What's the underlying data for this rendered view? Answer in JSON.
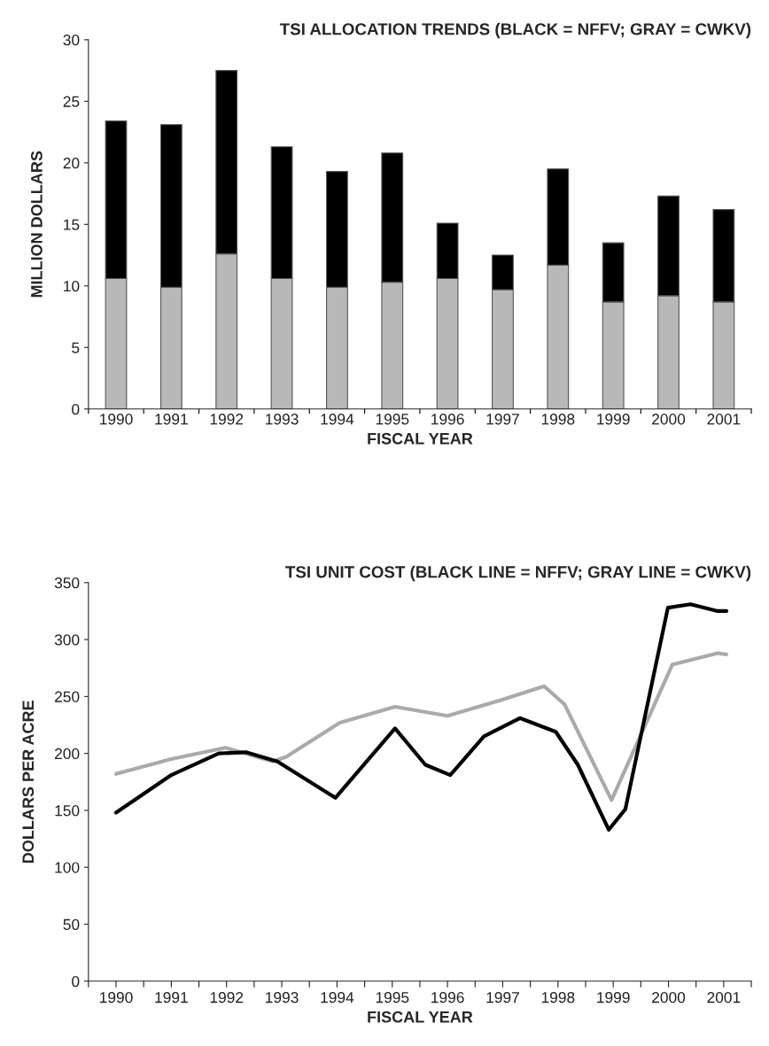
{
  "chart_data": [
    {
      "type": "bar",
      "title": "TSI ALLOCATION TRENDS (BLACK = NFFV; GRAY = CWKV)",
      "xlabel": "FISCAL YEAR",
      "ylabel": "MILLION DOLLARS",
      "stacked": true,
      "categories": [
        "1990",
        "1991",
        "1992",
        "1993",
        "1994",
        "1995",
        "1996",
        "1997",
        "1998",
        "1999",
        "2000",
        "2001"
      ],
      "series": [
        {
          "color": "#b8b8b8",
          "values": [
            10.6,
            9.9,
            12.6,
            10.6,
            9.9,
            10.3,
            10.6,
            9.7,
            11.7,
            8.7,
            9.2,
            8.7
          ]
        },
        {
          "color": "#000000",
          "values": [
            12.8,
            13.2,
            14.9,
            10.7,
            9.4,
            10.5,
            4.5,
            2.8,
            7.8,
            4.8,
            8.1,
            7.5
          ]
        }
      ],
      "ylim": [
        0,
        30
      ],
      "yticks": [
        0,
        5,
        10,
        15,
        20,
        25,
        30
      ],
      "grid": false,
      "legend": false
    },
    {
      "type": "line",
      "title": "TSI UNIT COST (BLACK LINE = NFFV; GRAY LINE = CWKV)",
      "xlabel": "FISCAL YEAR",
      "ylabel": "DOLLARS PER ACRE",
      "series": [
        {
          "color": "#aaaaaa",
          "x": [
            1990.0,
            1991.0,
            1991.98,
            1992.84,
            1993.08,
            1994.05,
            1995.05,
            1996.0,
            1996.98,
            1997.75,
            1998.12,
            1998.97,
            2000.07,
            2000.89,
            2001.05
          ],
          "values": [
            182,
            195,
            205,
            193,
            197,
            227,
            241,
            233,
            247,
            259,
            243,
            159,
            278,
            288,
            287
          ]
        },
        {
          "color": "#000000",
          "x": [
            1990.0,
            1991.0,
            1991.86,
            1992.35,
            1992.92,
            1993.97,
            1995.05,
            1995.6,
            1996.05,
            1996.66,
            1997.31,
            1997.96,
            1998.36,
            1998.92,
            1999.22,
            1999.99,
            2000.4,
            2000.89,
            2001.05
          ],
          "values": [
            148,
            181,
            200,
            201,
            193,
            161,
            222,
            190,
            181,
            215,
            231,
            219,
            190,
            133,
            151,
            328,
            331,
            325,
            325
          ]
        }
      ],
      "xlim": [
        1989.5,
        2001.5
      ],
      "xticks": [
        {
          "value": 1989.5,
          "label": null
        },
        {
          "value": 1990,
          "label": "1990"
        },
        {
          "value": 1990.5,
          "label": null
        },
        {
          "value": 1991,
          "label": "1991"
        },
        {
          "value": 1991.5,
          "label": null
        },
        {
          "value": 1992,
          "label": "1992"
        },
        {
          "value": 1992.5,
          "label": null
        },
        {
          "value": 1993,
          "label": "1993"
        },
        {
          "value": 1993.5,
          "label": null
        },
        {
          "value": 1994,
          "label": "1994"
        },
        {
          "value": 1994.5,
          "label": null
        },
        {
          "value": 1995,
          "label": "1995"
        },
        {
          "value": 1995.5,
          "label": null
        },
        {
          "value": 1996,
          "label": "1996"
        },
        {
          "value": 1996.5,
          "label": null
        },
        {
          "value": 1997,
          "label": "1997"
        },
        {
          "value": 1997.5,
          "label": null
        },
        {
          "value": 1998,
          "label": "1998"
        },
        {
          "value": 1998.5,
          "label": null
        },
        {
          "value": 1999,
          "label": "1999"
        },
        {
          "value": 1999.5,
          "label": null
        },
        {
          "value": 2000,
          "label": "2000"
        },
        {
          "value": 2000.5,
          "label": null
        },
        {
          "value": 2001,
          "label": "2001"
        },
        {
          "value": 2001.5,
          "label": null
        }
      ],
      "ylim": [
        0,
        350
      ],
      "yticks": [
        0,
        50,
        100,
        150,
        200,
        250,
        300,
        350
      ],
      "grid": false,
      "legend": false,
      "marker": "none",
      "line_style": "solid"
    }
  ]
}
